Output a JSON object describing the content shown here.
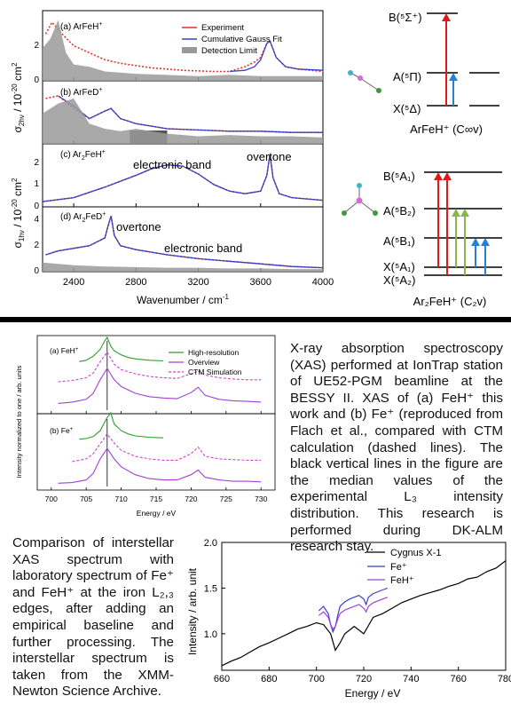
{
  "top_figure": {
    "panels": [
      {
        "id": "a",
        "label": "(a) ArFeH",
        "label_sup": "+"
      },
      {
        "id": "b",
        "label": "(b) ArFeD",
        "label_sup": "+"
      },
      {
        "id": "c",
        "label": "(c) Ar",
        "label_sub": "2",
        "label_rest": "FeH",
        "label_sup": "+"
      },
      {
        "id": "d",
        "label": "(d) Ar",
        "label_sub": "2",
        "label_rest": "FeD",
        "label_sup": "+"
      }
    ],
    "legend": [
      "Experiment",
      "Cumulative Gauss Fit",
      "Detection Limit"
    ],
    "annotations": {
      "electronic_band_c": "electronic band",
      "overtone_c": "overtone",
      "overtone_d": "overtone",
      "electronic_band_d": "electronic band"
    },
    "xlabel": "Wavenumber / cm",
    "xlabel_sup": "-1",
    "ylabel_top": "σ",
    "ylabel_top_sub": "2hν",
    "ylabel_top_rest": " / 10",
    "ylabel_top_sup": "-20",
    "ylabel_top_unit": " cm",
    "ylabel_top_sup2": "2",
    "ylabel_bot": "σ",
    "ylabel_bot_sub": "1hν",
    "ylabel_bot_rest": " / 10",
    "ylabel_bot_sup": "-20",
    "ylabel_bot_unit": " cm",
    "ylabel_bot_sup2": "2",
    "x_ticks": [
      "2400",
      "2800",
      "3200",
      "3600",
      "4000"
    ],
    "y_ticks_a": [
      "0",
      "2"
    ],
    "y_ticks_c": [
      "0",
      "1",
      "2"
    ],
    "y_ticks_d": [
      "0",
      "2",
      "4"
    ]
  },
  "energy_diagrams": {
    "arfeh": {
      "levels": [
        "B(⁵Σ⁺)",
        "A(⁵Π)",
        "X(⁵Δ)"
      ],
      "caption": "ArFeH⁺ (C∞v)"
    },
    "ar2feh": {
      "levels": [
        "B(⁵A₁)",
        "A(⁵B₂)",
        "A(⁵B₁)",
        "X(⁵A₁)",
        "X(⁵A₂)"
      ],
      "caption": "Ar₂FeH⁺ (C₂v)"
    }
  },
  "xas_figure": {
    "panels": [
      {
        "label": "(a) FeH",
        "label_sup": "+"
      },
      {
        "label": "(b) Fe",
        "label_sup": "+"
      }
    ],
    "legend": [
      "High-resolution",
      "Overview",
      "CTM Simulation"
    ],
    "xlabel": "Energy / eV",
    "ylabel": "Intensity normalized to one / arb. units",
    "x_ticks": [
      "700",
      "705",
      "710",
      "715",
      "720",
      "725",
      "730"
    ]
  },
  "xas_text": "X-ray absorption spectroscopy (XAS) performed at IonTrap station of UE52-PGM beamline at the BESSY II. XAS of (a) FeH⁺ this work and (b) Fe⁺ (reproduced from Flach et al., compared with CTM calculation (dashed lines). The black vertical lines in the figure are the median values of the experimental L₃ intensity distribution. This research is performed during DK-ALM research stay.",
  "comparison_text": "Comparison of interstellar XAS spectrum with laboratory spectrum of Fe⁺ and FeH⁺ at the iron L₂,₃ edges, after adding an empirical baseline and further processing. The interstellar spectrum is taken from the XMM-Newton Science Archive.",
  "comparison_chart": {
    "legend": [
      "Cygnus X-1",
      "Fe⁺",
      "FeH⁺"
    ],
    "xlabel": "Energy / eV",
    "ylabel": "Intensity / arb. unit",
    "x_ticks": [
      "660",
      "680",
      "700",
      "720",
      "740",
      "760",
      "780"
    ],
    "y_ticks": [
      "1.0",
      "1.5",
      "2.0"
    ]
  },
  "colors": {
    "experiment": "#e8302a",
    "fit": "#3b3fc4",
    "detection": "#999999",
    "green": "#2e9e2e",
    "purple": "#a040d8",
    "magenta": "#d040d8",
    "blue": "#3b3fc4",
    "arrow_red": "#e01818",
    "arrow_blue": "#2a7fd4",
    "arrow_green": "#8ab848"
  },
  "chart_data": [
    {
      "type": "line",
      "title": "",
      "xlabel": "Wavenumber / cm-1",
      "ylabel": "σ2hν / σ1hν / 10-20 cm2",
      "xlim": [
        2200,
        4000
      ],
      "series": [
        {
          "name": "Experiment",
          "panel": "a",
          "x": [
            2220,
            2260,
            2300,
            2340,
            2400,
            2500,
            2600,
            2700,
            2800,
            2900,
            3000,
            3100,
            3200,
            3300,
            3400,
            3500,
            3560,
            3600,
            3640,
            3660,
            3700,
            3760,
            3840,
            3920,
            4000
          ],
          "y": [
            2.0,
            2.5,
            2.2,
            1.9,
            1.5,
            1.2,
            0.9,
            0.75,
            0.65,
            0.55,
            0.5,
            0.45,
            0.42,
            0.4,
            0.4,
            0.6,
            0.8,
            1.0,
            1.6,
            1.7,
            1.0,
            0.6,
            0.5,
            0.45,
            0.4
          ]
        },
        {
          "name": "Cumulative Gauss Fit",
          "panel": "a",
          "x": [
            3400,
            3500,
            3560,
            3600,
            3640,
            3660,
            3700,
            3760,
            3840,
            4000
          ],
          "y": [
            0.4,
            0.45,
            0.6,
            0.9,
            1.6,
            1.7,
            1.0,
            0.6,
            0.5,
            0.45
          ]
        },
        {
          "name": "Detection Limit",
          "panel": "a",
          "x": [
            2200,
            2250,
            2300,
            2350,
            2400,
            2500,
            2600,
            2800,
            3000,
            3200,
            3400,
            3600,
            3800,
            4000
          ],
          "y": [
            1.4,
            1.8,
            2.6,
            1.2,
            0.7,
            0.6,
            0.4,
            0.3,
            0.25,
            0.2,
            0.25,
            0.2,
            0.2,
            0.2
          ]
        },
        {
          "name": "Experiment",
          "panel": "b",
          "x": [
            2220,
            2300,
            2400,
            2500,
            2600,
            2640,
            2700,
            2800,
            2900,
            3000,
            3200,
            3400,
            3600,
            3800,
            4000
          ],
          "y": [
            1.8,
            1.9,
            1.4,
            1.0,
            1.3,
            1.4,
            1.0,
            0.8,
            0.7,
            0.6,
            0.55,
            0.5,
            0.5,
            0.45,
            0.45
          ]
        },
        {
          "name": "Cumulative Gauss Fit",
          "panel": "b",
          "x": [
            2300,
            2400,
            2500,
            2600,
            2640,
            2700,
            2800,
            2900,
            3000,
            3200,
            3400,
            3600,
            3800,
            4000
          ],
          "y": [
            1.9,
            1.5,
            1.0,
            1.3,
            1.4,
            1.0,
            0.8,
            0.7,
            0.6,
            0.55,
            0.5,
            0.5,
            0.45,
            0.45
          ]
        },
        {
          "name": "Detection Limit",
          "panel": "b",
          "x": [
            2200,
            2300,
            2400,
            2500,
            2600,
            2700,
            2800,
            3000,
            3200,
            3400,
            3600,
            3800,
            4000
          ],
          "y": [
            1.2,
            1.6,
            1.8,
            0.8,
            0.6,
            0.5,
            0.6,
            0.4,
            0.3,
            0.35,
            0.3,
            0.3,
            0.25
          ]
        },
        {
          "name": "Experiment",
          "panel": "c",
          "x": [
            2200,
            2400,
            2600,
            2800,
            2900,
            3000,
            3100,
            3200,
            3300,
            3400,
            3500,
            3600,
            3640,
            3660,
            3680,
            3720,
            3800,
            3900,
            4000
          ],
          "y": [
            0.2,
            0.35,
            0.75,
            1.2,
            1.45,
            1.6,
            1.55,
            1.25,
            0.85,
            0.6,
            0.5,
            0.6,
            1.2,
            2.0,
            1.1,
            0.5,
            0.35,
            0.3,
            0.25
          ]
        },
        {
          "name": "Cumulative Gauss Fit",
          "panel": "c",
          "x": [
            2200,
            2400,
            2600,
            2800,
            2900,
            3000,
            3100,
            3200,
            3300,
            3400,
            3500,
            3600,
            3640,
            3660,
            3680,
            3720,
            3800,
            3900,
            4000
          ],
          "y": [
            0.2,
            0.35,
            0.75,
            1.2,
            1.45,
            1.6,
            1.55,
            1.25,
            0.85,
            0.6,
            0.5,
            0.6,
            1.2,
            2.0,
            1.1,
            0.5,
            0.35,
            0.3,
            0.25
          ]
        },
        {
          "name": "Experiment",
          "panel": "d",
          "x": [
            2220,
            2300,
            2400,
            2500,
            2550,
            2600,
            2620,
            2640,
            2660,
            2700,
            2800,
            2900,
            3000,
            3200,
            3400,
            3600,
            3800,
            4000
          ],
          "y": [
            1.3,
            1.6,
            1.8,
            2.0,
            2.3,
            2.6,
            3.5,
            4.3,
            2.8,
            2.0,
            1.7,
            1.5,
            1.3,
            1.0,
            0.8,
            0.6,
            0.4,
            0.3
          ]
        },
        {
          "name": "Cumulative Gauss Fit",
          "panel": "d",
          "x": [
            2220,
            2300,
            2400,
            2500,
            2550,
            2600,
            2620,
            2640,
            2660,
            2700,
            2800,
            2900,
            3000,
            3200,
            3400,
            3600,
            3800,
            4000
          ],
          "y": [
            1.3,
            1.6,
            1.8,
            2.0,
            2.3,
            2.6,
            3.5,
            4.3,
            2.8,
            2.0,
            1.7,
            1.5,
            1.3,
            1.0,
            0.8,
            0.6,
            0.4,
            0.3
          ]
        },
        {
          "name": "Detection Limit",
          "panel": "d",
          "x": [
            2200,
            2400,
            2600,
            2800,
            3000,
            3200,
            3400,
            3600,
            3800,
            4000
          ],
          "y": [
            0.7,
            0.5,
            0.4,
            0.35,
            0.3,
            0.3,
            0.25,
            0.25,
            0.2,
            0.2
          ]
        }
      ]
    },
    {
      "type": "line",
      "title": "",
      "xlabel": "Energy / eV",
      "ylabel": "Intensity normalized to one / arb. units",
      "xlim": [
        698,
        732
      ],
      "series": [
        {
          "name": "High-resolution",
          "panel": "a",
          "x": [
            704,
            705,
            706,
            707,
            707.5,
            708,
            708.5,
            709,
            710,
            711,
            712,
            714,
            716
          ],
          "y": [
            0.72,
            0.74,
            0.8,
            0.9,
            1.0,
            1.08,
            0.95,
            0.88,
            0.82,
            0.78,
            0.76,
            0.74,
            0.73
          ]
        },
        {
          "name": "CTM Simulation",
          "panel": "a",
          "x": [
            701,
            703,
            705,
            706,
            707,
            708,
            709,
            710,
            712,
            714,
            716,
            718,
            720,
            721,
            722,
            724,
            726,
            728,
            730
          ],
          "y": [
            0.42,
            0.44,
            0.48,
            0.55,
            0.72,
            0.86,
            0.68,
            0.6,
            0.54,
            0.5,
            0.48,
            0.47,
            0.54,
            0.58,
            0.52,
            0.48,
            0.46,
            0.45,
            0.45
          ]
        },
        {
          "name": "Overview",
          "panel": "a",
          "x": [
            701,
            703,
            705,
            706,
            707,
            708,
            709,
            710,
            712,
            714,
            716,
            718,
            720,
            721,
            722,
            724,
            726,
            728,
            730
          ],
          "y": [
            0.1,
            0.12,
            0.16,
            0.25,
            0.45,
            0.62,
            0.45,
            0.35,
            0.25,
            0.2,
            0.18,
            0.17,
            0.26,
            0.34,
            0.22,
            0.16,
            0.14,
            0.13,
            0.12
          ]
        },
        {
          "name": "High-resolution",
          "panel": "b",
          "x": [
            704,
            705,
            706,
            707,
            708,
            708.5,
            709,
            710,
            711,
            712,
            714,
            716
          ],
          "y": [
            0.72,
            0.73,
            0.76,
            0.85,
            1.05,
            1.12,
            0.95,
            0.85,
            0.8,
            0.77,
            0.75,
            0.74
          ]
        },
        {
          "name": "CTM Simulation",
          "panel": "b",
          "x": [
            703,
            705,
            706,
            707,
            708,
            709,
            710,
            712,
            714,
            716,
            718,
            720,
            721,
            722,
            724,
            726,
            728,
            730
          ],
          "y": [
            0.38,
            0.42,
            0.5,
            0.65,
            0.8,
            0.66,
            0.55,
            0.46,
            0.42,
            0.4,
            0.4,
            0.5,
            0.6,
            0.46,
            0.42,
            0.41,
            0.4,
            0.4
          ]
        },
        {
          "name": "Overview",
          "panel": "b",
          "x": [
            701,
            703,
            705,
            706,
            707,
            708,
            709,
            710,
            712,
            714,
            716,
            718,
            720,
            721,
            722,
            724,
            726,
            728,
            730
          ],
          "y": [
            0.05,
            0.06,
            0.1,
            0.2,
            0.42,
            0.58,
            0.42,
            0.3,
            0.18,
            0.12,
            0.1,
            0.1,
            0.18,
            0.25,
            0.14,
            0.1,
            0.08,
            0.08,
            0.07
          ]
        }
      ]
    },
    {
      "type": "line",
      "title": "",
      "xlabel": "Energy / eV",
      "ylabel": "Intensity / arb. unit",
      "xlim": [
        660,
        780
      ],
      "ylim": [
        0.6,
        2.0
      ],
      "series": [
        {
          "name": "Cygnus X-1",
          "x": [
            660,
            664,
            668,
            672,
            676,
            680,
            684,
            688,
            692,
            696,
            700,
            703,
            706,
            708,
            710,
            712,
            716,
            720,
            724,
            728,
            732,
            736,
            740,
            744,
            748,
            752,
            756,
            760,
            764,
            768,
            772,
            776,
            780
          ],
          "y": [
            0.65,
            0.7,
            0.74,
            0.8,
            0.86,
            0.9,
            0.95,
            1.0,
            1.05,
            1.08,
            1.12,
            1.1,
            1.0,
            0.82,
            0.9,
            1.0,
            1.08,
            1.0,
            1.18,
            1.22,
            1.28,
            1.34,
            1.38,
            1.42,
            1.45,
            1.48,
            1.52,
            1.55,
            1.6,
            1.62,
            1.68,
            1.72,
            1.8
          ]
        },
        {
          "name": "Fe⁺",
          "x": [
            701,
            703,
            705,
            706,
            707,
            708,
            709,
            710,
            712,
            714,
            716,
            718,
            720,
            721,
            722,
            724,
            726,
            728,
            730
          ],
          "y": [
            1.25,
            1.3,
            1.22,
            1.1,
            1.02,
            1.08,
            1.2,
            1.3,
            1.35,
            1.38,
            1.4,
            1.42,
            1.38,
            1.32,
            1.4,
            1.44,
            1.46,
            1.48,
            1.5
          ]
        },
        {
          "name": "FeH⁺",
          "x": [
            701,
            703,
            705,
            706,
            707,
            708,
            709,
            710,
            712,
            714,
            716,
            718,
            720,
            721,
            722,
            724,
            726,
            728,
            730
          ],
          "y": [
            1.2,
            1.24,
            1.18,
            1.1,
            1.05,
            1.08,
            1.16,
            1.22,
            1.26,
            1.28,
            1.3,
            1.32,
            1.28,
            1.24,
            1.3,
            1.34,
            1.36,
            1.38,
            1.4
          ]
        }
      ]
    }
  ]
}
